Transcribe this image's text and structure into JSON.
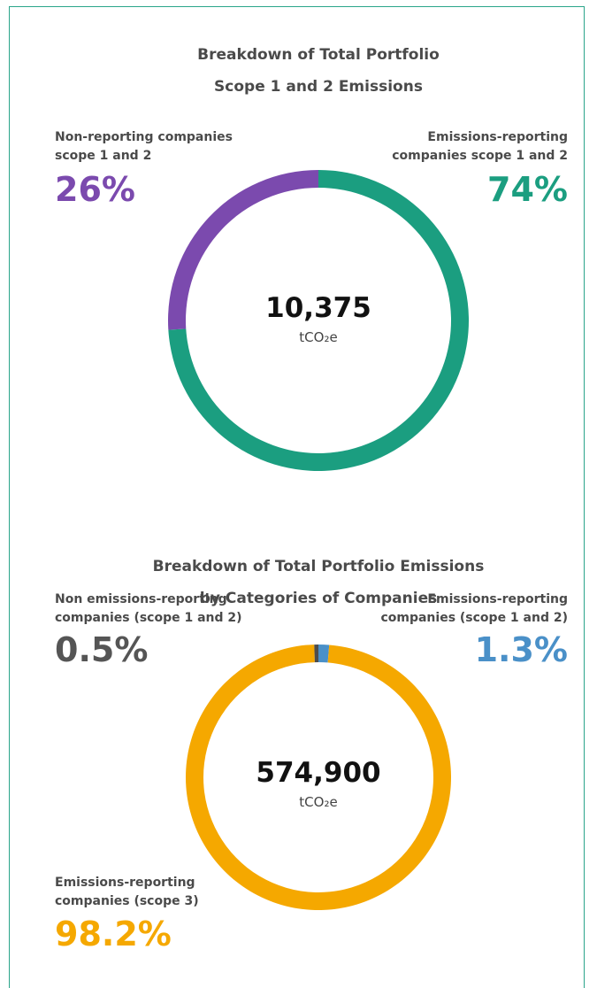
{
  "chart_data": [
    {
      "type": "donut",
      "title": "Breakdown of Total Portfolio\nScope 1 and 2 Emissions",
      "center_label": "10,375",
      "center_unit": "tCO₂e",
      "categories": [
        "Emissions-reporting\ncompanies scope 1 and 2",
        "Non-reporting companies\nscope 1 and 2"
      ],
      "values": [
        74,
        26
      ],
      "value_labels": [
        "74%",
        "26%"
      ],
      "colors": [
        "#1b9e80",
        "#7b4aae"
      ]
    },
    {
      "type": "donut",
      "title": "Breakdown of Total Portfolio Emissions\nby Categories of Companies",
      "center_label": "574,900",
      "center_unit": "tCO₂e",
      "categories": [
        "Emissions-reporting\ncompanies (scope 1 and 2)",
        "Emissions-reporting\ncompanies (scope 3)",
        "Non emissions-reporting\ncompanies (scope 1 and 2)"
      ],
      "values": [
        1.3,
        98.2,
        0.5
      ],
      "value_labels": [
        "1.3%",
        "98.2%",
        "0.5%"
      ],
      "colors": [
        "#4a90c8",
        "#f5a800",
        "#4d4d4d"
      ]
    }
  ]
}
